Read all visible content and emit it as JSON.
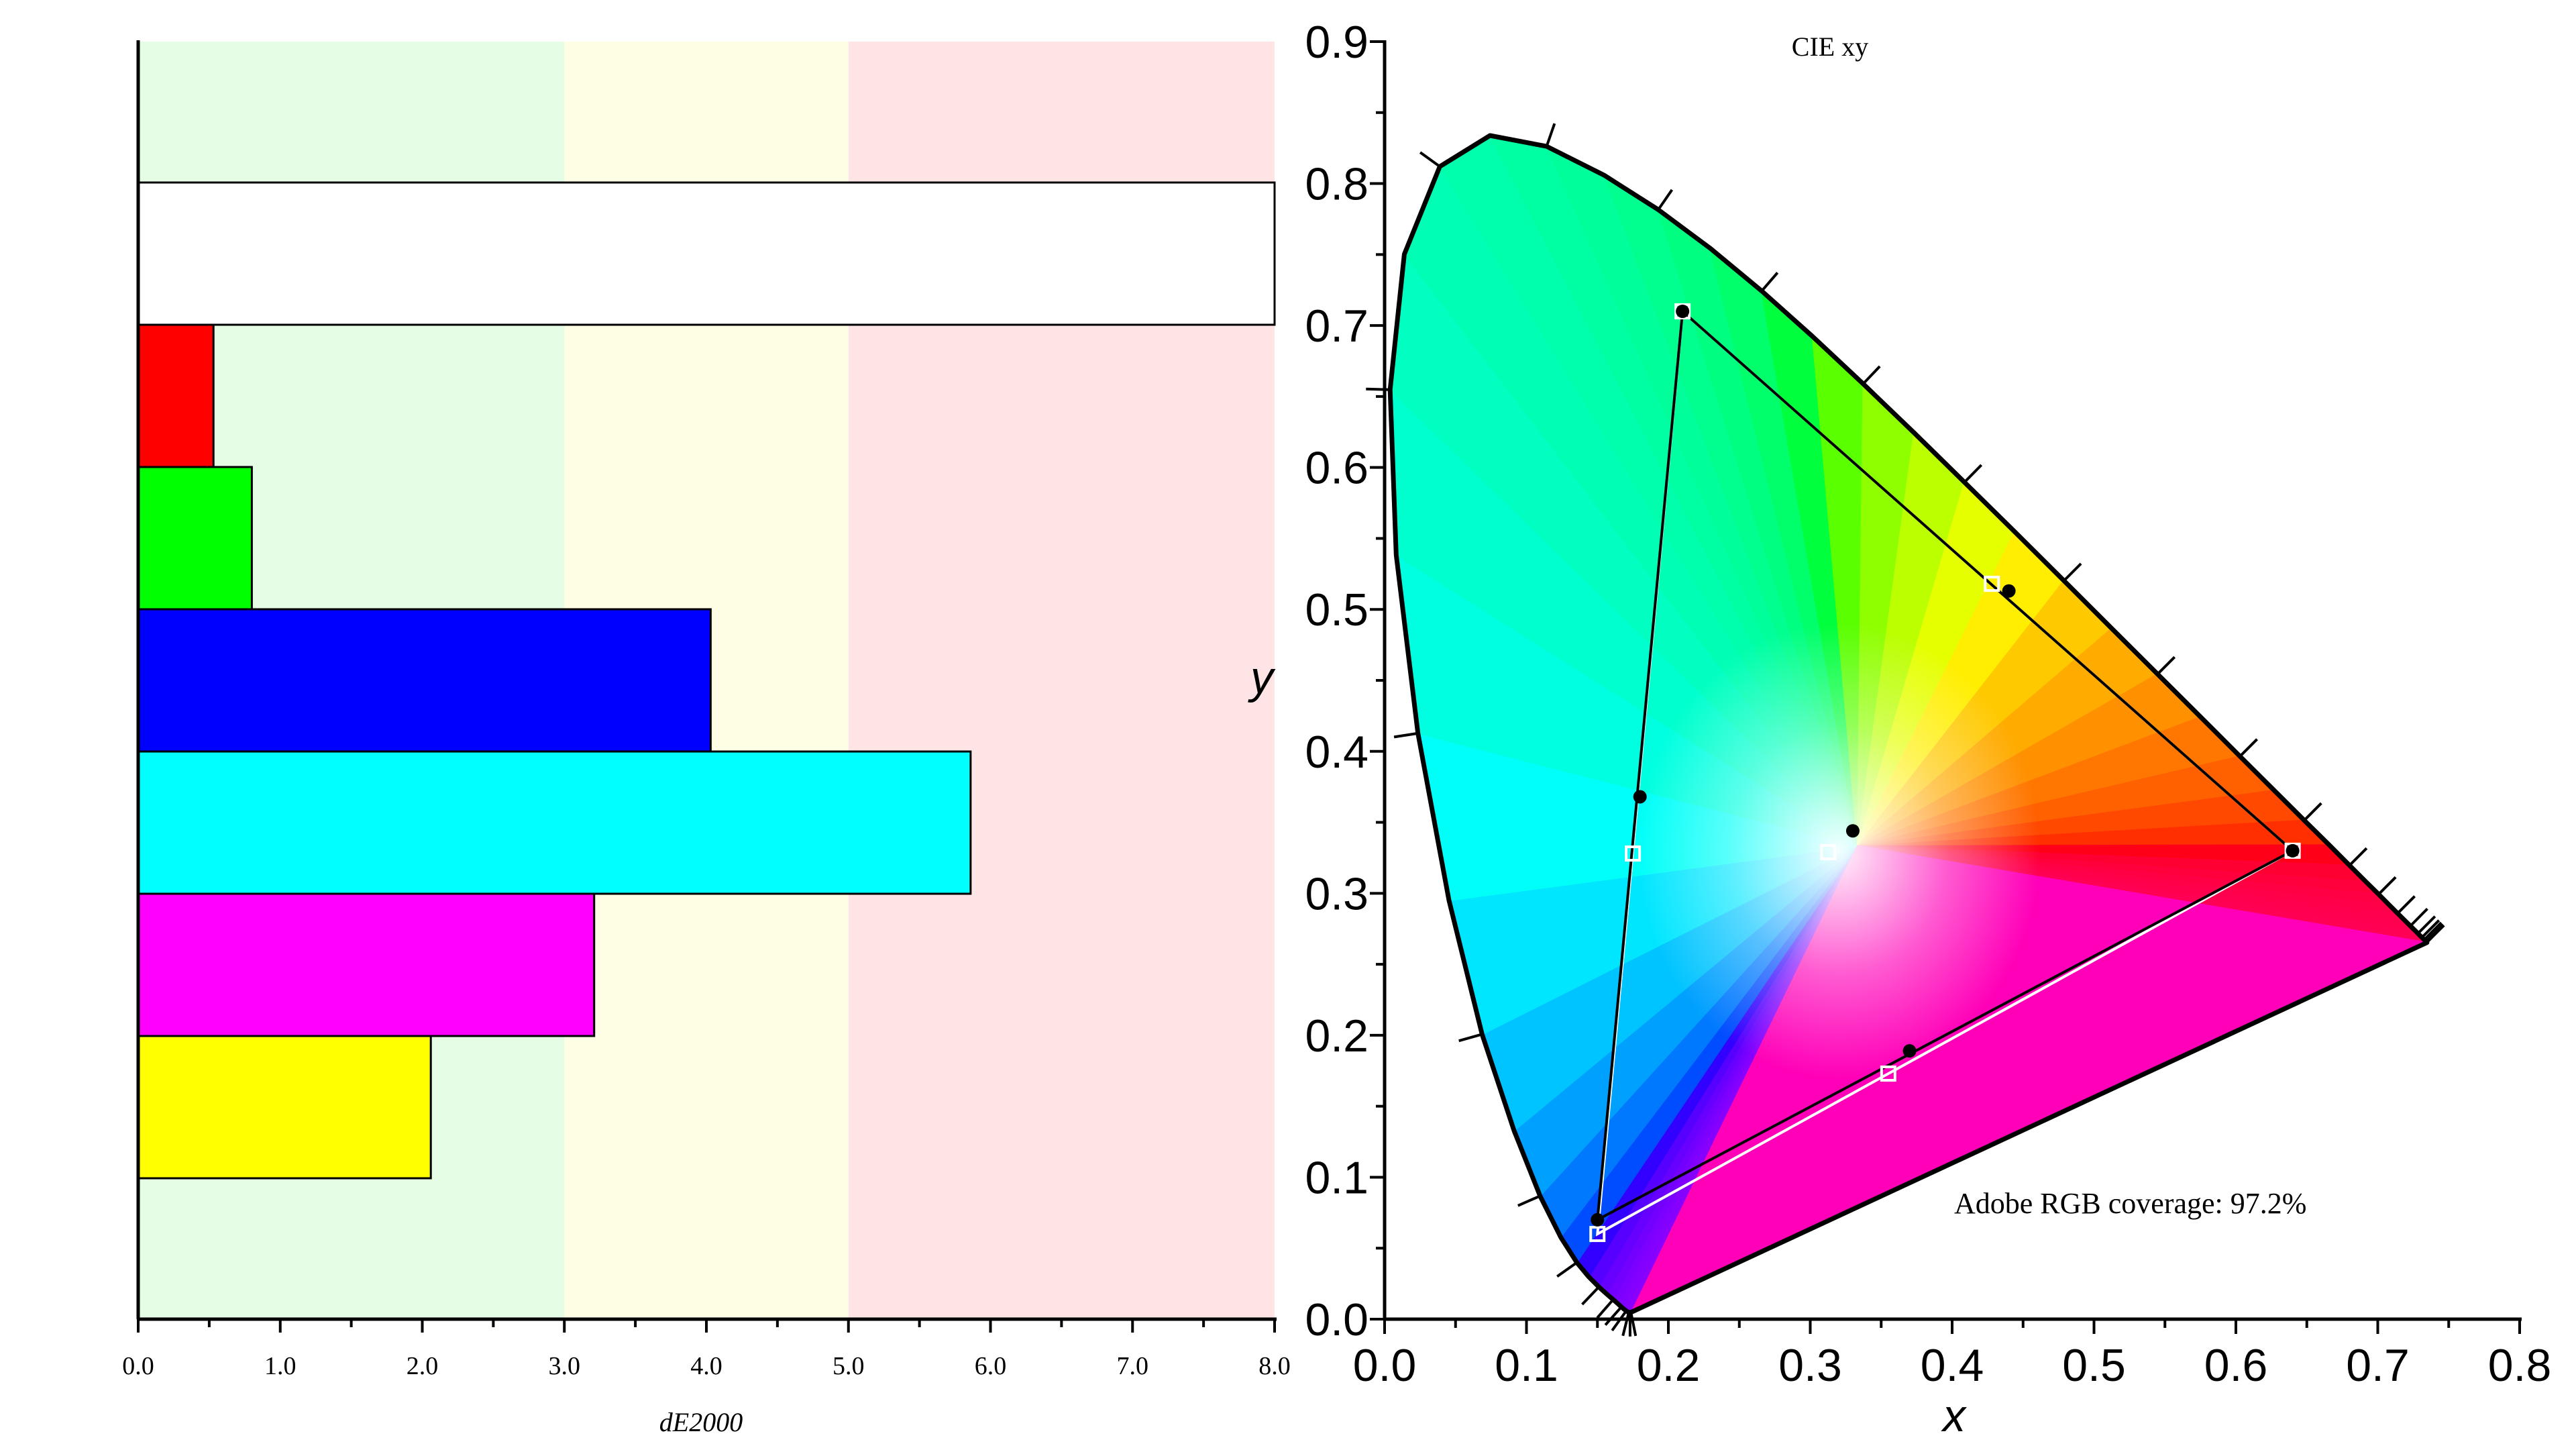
{
  "chart_data": [
    {
      "type": "bar",
      "orientation": "horizontal",
      "xlabel": "dE2000",
      "xlim": [
        0,
        8
      ],
      "x_ticks": [
        "0.0",
        "1.0",
        "2.0",
        "3.0",
        "4.0",
        "5.0",
        "6.0",
        "7.0",
        "8.0"
      ],
      "zones": [
        {
          "from": 0,
          "to": 3,
          "color": "#e5fde5"
        },
        {
          "from": 3,
          "to": 5,
          "color": "#fefee4"
        },
        {
          "from": 5,
          "to": 8,
          "color": "#fee4e4"
        }
      ],
      "bars": [
        {
          "color": "#ffffff",
          "value": 8.0
        },
        {
          "color": "#ff0000",
          "value": 0.53
        },
        {
          "color": "#00ff00",
          "value": 0.8
        },
        {
          "color": "#0000ff",
          "value": 4.03
        },
        {
          "color": "#00ffff",
          "value": 5.86
        },
        {
          "color": "#ff00ff",
          "value": 3.21
        },
        {
          "color": "#ffff00",
          "value": 2.06
        }
      ]
    },
    {
      "type": "scatter",
      "title": "CIE xy",
      "xlabel": "x",
      "ylabel": "y",
      "xlim": [
        0,
        0.8
      ],
      "ylim": [
        0,
        0.9
      ],
      "x_ticks": [
        "0.0",
        "0.1",
        "0.2",
        "0.3",
        "0.4",
        "0.5",
        "0.6",
        "0.7",
        "0.8"
      ],
      "y_ticks": [
        "0.0",
        "0.1",
        "0.2",
        "0.3",
        "0.4",
        "0.5",
        "0.6",
        "0.7",
        "0.8",
        "0.9"
      ],
      "annotation": "Adobe RGB coverage: 97.2%",
      "measured_gamut": [
        [
          0.64,
          0.33
        ],
        [
          0.21,
          0.71
        ],
        [
          0.15,
          0.07
        ]
      ],
      "measured_points": [
        [
          0.64,
          0.33
        ],
        [
          0.21,
          0.71
        ],
        [
          0.15,
          0.07
        ],
        [
          0.44,
          0.513
        ],
        [
          0.18,
          0.368
        ],
        [
          0.37,
          0.189
        ],
        [
          0.33,
          0.344
        ]
      ],
      "target_gamut": [
        [
          0.64,
          0.33
        ],
        [
          0.21,
          0.71
        ],
        [
          0.15,
          0.06
        ]
      ],
      "target_points": [
        [
          0.64,
          0.33
        ],
        [
          0.21,
          0.71
        ],
        [
          0.15,
          0.06
        ],
        [
          0.428,
          0.518
        ],
        [
          0.175,
          0.328
        ],
        [
          0.355,
          0.173
        ],
        [
          0.3127,
          0.329
        ]
      ],
      "spectral_locus": [
        [
          0.1741,
          0.005
        ],
        [
          0.1738,
          0.0049
        ],
        [
          0.1736,
          0.0049
        ],
        [
          0.1733,
          0.0048
        ],
        [
          0.173,
          0.0048
        ],
        [
          0.1726,
          0.0048
        ],
        [
          0.1721,
          0.0048
        ],
        [
          0.1714,
          0.0051
        ],
        [
          0.1703,
          0.0058
        ],
        [
          0.1689,
          0.0069
        ],
        [
          0.1669,
          0.0086
        ],
        [
          0.1644,
          0.0109
        ],
        [
          0.1611,
          0.0138
        ],
        [
          0.1566,
          0.0177
        ],
        [
          0.151,
          0.0227
        ],
        [
          0.144,
          0.0297
        ],
        [
          0.1355,
          0.0399
        ],
        [
          0.1241,
          0.0578
        ],
        [
          0.1096,
          0.0868
        ],
        [
          0.0913,
          0.1327
        ],
        [
          0.0687,
          0.2007
        ],
        [
          0.0454,
          0.295
        ],
        [
          0.0235,
          0.4127
        ],
        [
          0.0082,
          0.5384
        ],
        [
          0.0039,
          0.6548
        ],
        [
          0.0139,
          0.7502
        ],
        [
          0.0389,
          0.812
        ],
        [
          0.0743,
          0.8338
        ],
        [
          0.1142,
          0.8262
        ],
        [
          0.1547,
          0.8059
        ],
        [
          0.1929,
          0.7816
        ],
        [
          0.2296,
          0.7543
        ],
        [
          0.2658,
          0.7243
        ],
        [
          0.3016,
          0.6923
        ],
        [
          0.3373,
          0.6589
        ],
        [
          0.3731,
          0.6245
        ],
        [
          0.4087,
          0.5896
        ],
        [
          0.4441,
          0.5547
        ],
        [
          0.4788,
          0.5202
        ],
        [
          0.5125,
          0.4866
        ],
        [
          0.5448,
          0.4544
        ],
        [
          0.5752,
          0.4242
        ],
        [
          0.6029,
          0.3965
        ],
        [
          0.627,
          0.3725
        ],
        [
          0.6482,
          0.3514
        ],
        [
          0.6658,
          0.334
        ],
        [
          0.6801,
          0.3197
        ],
        [
          0.6915,
          0.3083
        ],
        [
          0.7006,
          0.2993
        ],
        [
          0.7079,
          0.292
        ],
        [
          0.714,
          0.2859
        ],
        [
          0.719,
          0.2809
        ],
        [
          0.723,
          0.277
        ],
        [
          0.726,
          0.274
        ],
        [
          0.7283,
          0.2717
        ],
        [
          0.73,
          0.27
        ],
        [
          0.7311,
          0.2689
        ],
        [
          0.732,
          0.268
        ],
        [
          0.7327,
          0.2673
        ],
        [
          0.7334,
          0.2666
        ],
        [
          0.734,
          0.266
        ],
        [
          0.7344,
          0.2656
        ],
        [
          0.7346,
          0.2654
        ],
        [
          0.7347,
          0.2653
        ]
      ]
    }
  ]
}
